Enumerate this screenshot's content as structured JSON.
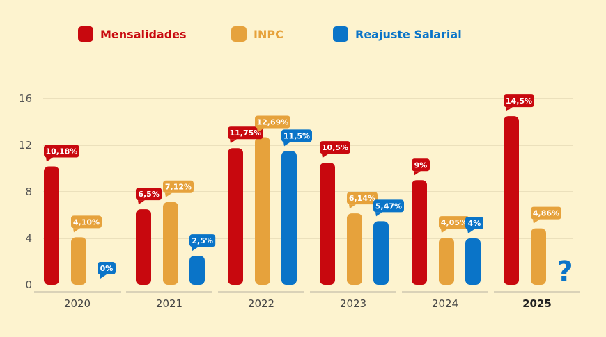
{
  "chart_data": {
    "type": "bar",
    "categories": [
      "2020",
      "2021",
      "2022",
      "2023",
      "2024",
      "2025"
    ],
    "highlight_category": "2025",
    "series": [
      {
        "name": "Mensalidades",
        "color": "#c8080e",
        "values": [
          10.18,
          6.5,
          11.75,
          10.5,
          9,
          14.5
        ],
        "labels": [
          "10,18%",
          "6,5%",
          "11,75%",
          "10,5%",
          "9%",
          "14,5%"
        ]
      },
      {
        "name": "INPC",
        "color": "#e6a23c",
        "values": [
          4.1,
          7.12,
          12.69,
          6.14,
          4.05,
          4.86
        ],
        "labels": [
          "4,10%",
          "7,12%",
          "12,69%",
          "6,14%",
          "4,05%",
          "4,86%"
        ]
      },
      {
        "name": "Reajuste Salarial",
        "color": "#0a74c8",
        "values": [
          0,
          2.5,
          11.5,
          5.47,
          4,
          null
        ],
        "labels": [
          "0%",
          "2,5%",
          "11,5%",
          "5,47%",
          "4%",
          null
        ]
      }
    ],
    "missing_marker": "?",
    "yticks": [
      0,
      4,
      8,
      12,
      16
    ],
    "ylim": [
      0,
      16
    ],
    "grid": true,
    "legend": "top"
  }
}
